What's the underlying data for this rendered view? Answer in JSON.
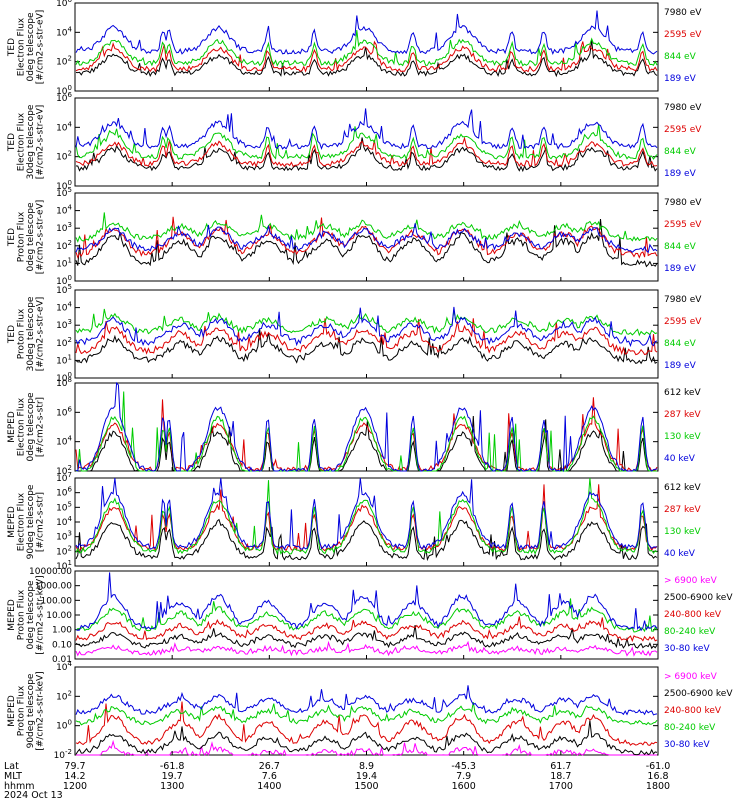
{
  "chart_data": [
    {
      "type": "line",
      "ylabel": [
        "TED",
        "Electron Flux",
        "0deg telescope",
        "[#/cm2-s-str-eV]"
      ],
      "ytick_labels": [
        "10^6",
        "10^4",
        "10^2",
        "10^0"
      ],
      "y_exponents": [
        6,
        4,
        2,
        0
      ],
      "series": [
        {
          "name": "7980 eV",
          "color": "#000000",
          "base": 1.2,
          "peak": 2.4
        },
        {
          "name": "2595 eV",
          "color": "#dd0000",
          "base": 1.5,
          "peak": 2.9
        },
        {
          "name": "844 eV",
          "color": "#00cc00",
          "base": 1.9,
          "peak": 3.4
        },
        {
          "name": "189 eV",
          "color": "#0000dd",
          "base": 2.7,
          "peak": 4.3
        }
      ]
    },
    {
      "type": "line",
      "ylabel": [
        "TED",
        "Electron Flux",
        "30deg telescope",
        "[#/cm2-s-str-eV]"
      ],
      "ytick_labels": [
        "10^6",
        "10^4",
        "10^2",
        "10^0"
      ],
      "y_exponents": [
        6,
        4,
        2,
        0
      ],
      "series": [
        {
          "name": "7980 eV",
          "color": "#000000",
          "base": 1.2,
          "peak": 2.5
        },
        {
          "name": "2595 eV",
          "color": "#dd0000",
          "base": 1.5,
          "peak": 2.9
        },
        {
          "name": "844 eV",
          "color": "#00cc00",
          "base": 2.0,
          "peak": 3.5
        },
        {
          "name": "189 eV",
          "color": "#0000dd",
          "base": 2.7,
          "peak": 4.3
        }
      ]
    },
    {
      "type": "line",
      "ylabel": [
        "TED",
        "Proton Flux",
        "0deg telescope",
        "[#/cm2-s-str-eV]"
      ],
      "ytick_labels": [
        "10^5",
        "10^4",
        "10^3",
        "10^2",
        "10^1",
        "10^0"
      ],
      "y_exponents": [
        5,
        4,
        3,
        2,
        1,
        0
      ],
      "series": [
        {
          "name": "7980 eV",
          "color": "#000000",
          "base": 1.0,
          "peak": 2.6
        },
        {
          "name": "2595 eV",
          "color": "#dd0000",
          "base": 1.5,
          "peak": 3.0
        },
        {
          "name": "844 eV",
          "color": "#00cc00",
          "base": 2.4,
          "peak": 3.3
        },
        {
          "name": "189 eV",
          "color": "#0000dd",
          "base": 1.8,
          "peak": 2.9
        }
      ]
    },
    {
      "type": "line",
      "ylabel": [
        "TED",
        "Proton Flux",
        "30deg telescope",
        "[#/cm2-s-str-eV]"
      ],
      "ytick_labels": [
        "10^5",
        "10^4",
        "10^3",
        "10^2",
        "10^1",
        "10^0"
      ],
      "y_exponents": [
        5,
        4,
        3,
        2,
        1,
        0
      ],
      "series": [
        {
          "name": "7980 eV",
          "color": "#000000",
          "base": 1.0,
          "peak": 2.2
        },
        {
          "name": "2595 eV",
          "color": "#dd0000",
          "base": 1.5,
          "peak": 2.8
        },
        {
          "name": "844 eV",
          "color": "#00cc00",
          "base": 2.6,
          "peak": 3.5
        },
        {
          "name": "189 eV",
          "color": "#0000dd",
          "base": 2.0,
          "peak": 3.3
        }
      ]
    },
    {
      "type": "line",
      "ylabel": [
        "MEPED",
        "Electron Flux",
        "0deg telescope",
        "[#/cm2-s-str]"
      ],
      "ytick_labels": [
        "10^8",
        "10^6",
        "10^4",
        "10^2"
      ],
      "y_exponents": [
        8,
        6,
        4,
        2
      ],
      "series": [
        {
          "name": "612 keV",
          "color": "#000000",
          "base": 1.6,
          "peak": 4.6
        },
        {
          "name": "287 keV",
          "color": "#dd0000",
          "base": 2.1,
          "peak": 5.2
        },
        {
          "name": "130 keV",
          "color": "#00cc00",
          "base": 1.7,
          "peak": 5.6
        },
        {
          "name": "40 keV",
          "color": "#0000dd",
          "base": 2.0,
          "peak": 6.3
        }
      ]
    },
    {
      "type": "line",
      "ylabel": [
        "MEPED",
        "Electron Flux",
        "90deg telescope",
        "[#/cm2-s-str]"
      ],
      "ytick_labels": [
        "10^7",
        "10^6",
        "10^5",
        "10^4",
        "10^3",
        "10^2",
        "10^1"
      ],
      "y_exponents": [
        7,
        6,
        5,
        4,
        3,
        2,
        1
      ],
      "series": [
        {
          "name": "612 keV",
          "color": "#000000",
          "base": 1.6,
          "peak": 4.0
        },
        {
          "name": "287 keV",
          "color": "#dd0000",
          "base": 2.2,
          "peak": 5.0
        },
        {
          "name": "130 keV",
          "color": "#00cc00",
          "base": 2.0,
          "peak": 5.5
        },
        {
          "name": "40 keV",
          "color": "#0000dd",
          "base": 2.3,
          "peak": 6.0
        }
      ]
    },
    {
      "type": "line",
      "ylabel": [
        "MEPED",
        "Proton Flux",
        "0deg telescope",
        "[#/cm2-s-str-keV]"
      ],
      "ytick_labels": [
        "10000.00",
        "1000.00",
        "100.00",
        "10.00",
        "1.00",
        "0.10",
        "0.01"
      ],
      "y_exponents": [
        4,
        3,
        2,
        1,
        0,
        -1,
        -2
      ],
      "series": [
        {
          "name": "> 6900 keV",
          "color": "#ff00ff",
          "base": -1.6,
          "peak": -1.2
        },
        {
          "name": "2500-6900 keV",
          "color": "#000000",
          "base": -1.1,
          "peak": -0.3
        },
        {
          "name": "240-800 keV",
          "color": "#dd0000",
          "base": -0.6,
          "peak": 0.5
        },
        {
          "name": "80-240 keV",
          "color": "#00cc00",
          "base": 0.0,
          "peak": 1.4
        },
        {
          "name": "30-80 keV",
          "color": "#0000dd",
          "base": 0.1,
          "peak": 2.3
        }
      ]
    },
    {
      "type": "line",
      "ylabel": [
        "MEPED",
        "Proton Flux",
        "90deg telescope",
        "[#/cm2-s-str-keV]"
      ],
      "ytick_labels": [
        "10^4",
        "10^2",
        "10^0",
        "10^-2"
      ],
      "y_exponents": [
        4,
        2,
        0,
        -2
      ],
      "series": [
        {
          "name": "> 6900 keV",
          "color": "#ff00ff",
          "base": -2.3,
          "peak": -1.6
        },
        {
          "name": "2500-6900 keV",
          "color": "#000000",
          "base": -1.8,
          "peak": -0.6
        },
        {
          "name": "240-800 keV",
          "color": "#dd0000",
          "base": -1.2,
          "peak": 0.6
        },
        {
          "name": "80-240 keV",
          "color": "#00cc00",
          "base": 0.2,
          "peak": 1.2
        },
        {
          "name": "30-80 keV",
          "color": "#0000dd",
          "base": 0.9,
          "peak": 2.0
        }
      ]
    }
  ],
  "x_axis": {
    "time_start": "1200",
    "time_end": "1800",
    "row_labels": [
      "Lat",
      "MLT",
      "hhmm"
    ],
    "date": "2024 Oct 13",
    "columns": [
      {
        "Lat": "79.7",
        "MLT": "14.2",
        "hhmm": "1200"
      },
      {
        "Lat": "-61.8",
        "MLT": "19.7",
        "hhmm": "1300"
      },
      {
        "Lat": "26.7",
        "MLT": "7.6",
        "hhmm": "1400"
      },
      {
        "Lat": "8.9",
        "MLT": "19.4",
        "hhmm": "1500"
      },
      {
        "Lat": "-45.3",
        "MLT": "7.9",
        "hhmm": "1600"
      },
      {
        "Lat": "61.7",
        "MLT": "18.7",
        "hhmm": "1700"
      },
      {
        "Lat": "-61.0",
        "MLT": "16.8",
        "hhmm": "1800"
      }
    ]
  }
}
